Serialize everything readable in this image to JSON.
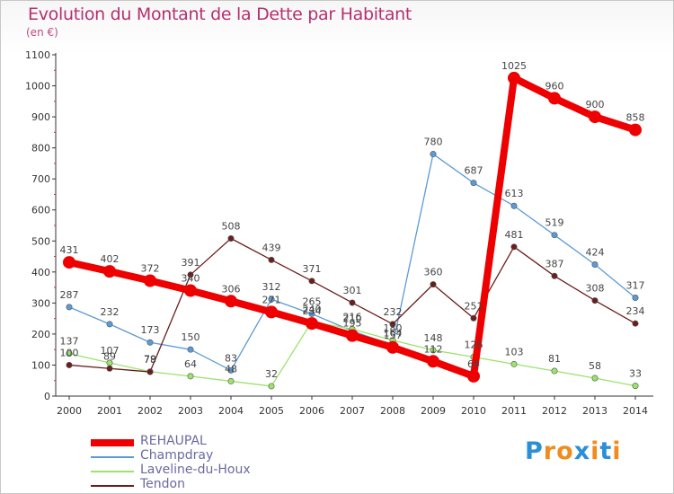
{
  "header": {
    "title": "Evolution du Montant de la Dette par Habitant",
    "unit": "(en €)"
  },
  "logo": {
    "text": "Proxiti",
    "letters": [
      "P",
      "r",
      "o",
      "x",
      "i",
      "t",
      "i"
    ],
    "colors": [
      "#2c8fd6",
      "#f08c1e",
      "#f08c1e",
      "#2c8fd6",
      "#f08c1e",
      "#2c8fd6",
      "#f08c1e"
    ]
  },
  "chart_data": {
    "type": "line",
    "title": "Evolution du Montant de la Dette par Habitant",
    "ylabel": "(en €)",
    "xlabel": "",
    "ylim": [
      0,
      1100
    ],
    "yticks": [
      0,
      100,
      200,
      300,
      400,
      500,
      600,
      700,
      800,
      900,
      1000,
      1100
    ],
    "x": [
      "2000",
      "2001",
      "2002",
      "2003",
      "2004",
      "2005",
      "2006",
      "2007",
      "2008",
      "2009",
      "2010",
      "2011",
      "2012",
      "2013",
      "2014"
    ],
    "grid": false,
    "legend": "bottom-left",
    "series": [
      {
        "name": "REHAUPAL",
        "color": "#ee0000",
        "width": 8,
        "marker": 7,
        "values": [
          431,
          402,
          372,
          340,
          306,
          271,
          234,
          195,
          157,
          112,
          64,
          1025,
          960,
          900,
          858
        ]
      },
      {
        "name": "Champdray",
        "color": "#5b9bd5",
        "width": 1.3,
        "marker": 3.2,
        "values": [
          287,
          232,
          173,
          150,
          83,
          312,
          265,
          210,
          164,
          780,
          687,
          613,
          519,
          424,
          317
        ]
      },
      {
        "name": "Laveline-du-Houx",
        "color": "#9be36b",
        "width": 1.3,
        "marker": 3.2,
        "values": [
          137,
          107,
          79,
          64,
          48,
          32,
          240,
          216,
          180,
          148,
          126,
          103,
          81,
          58,
          33
        ]
      },
      {
        "name": "Tendon",
        "color": "#6a1e1e",
        "width": 1.3,
        "marker": 3.2,
        "values": [
          100,
          89,
          78,
          391,
          508,
          439,
          371,
          301,
          232,
          360,
          251,
          481,
          387,
          308,
          234
        ]
      }
    ],
    "point_labels": [
      {
        "x": "2000",
        "text": "431"
      },
      {
        "x": "2001",
        "text": "402"
      },
      {
        "x": "2002",
        "text": "372"
      },
      {
        "x": "2003",
        "text": "340"
      },
      {
        "x": "2004",
        "text": "306"
      },
      {
        "x": "2005",
        "text": "271"
      },
      {
        "x": "2006",
        "text": "234"
      },
      {
        "x": "2007",
        "text": "195"
      },
      {
        "x": "2008",
        "text": "157"
      },
      {
        "x": "2009",
        "text": "112"
      },
      {
        "x": "2010",
        "text": "64"
      },
      {
        "x": "2011",
        "text": "1025"
      },
      {
        "x": "2012",
        "text": "960"
      },
      {
        "x": "2013",
        "text": "900"
      },
      {
        "x": "2014",
        "text": "858"
      },
      {
        "x": "2000",
        "text": "287"
      },
      {
        "x": "2001",
        "text": "232"
      },
      {
        "x": "2002",
        "text": "173"
      },
      {
        "x": "2003",
        "text": "150"
      },
      {
        "x": "2004",
        "text": "83"
      },
      {
        "x": "2005",
        "text": "312"
      },
      {
        "x": "2006",
        "text": "265"
      },
      {
        "x": "2007",
        "text": "210"
      },
      {
        "x": "2008",
        "text": "164"
      },
      {
        "x": "2009",
        "text": "780"
      },
      {
        "x": "2010",
        "text": "687"
      },
      {
        "x": "2011",
        "text": "613"
      },
      {
        "x": "2012",
        "text": "519"
      },
      {
        "x": "2013",
        "text": "424"
      },
      {
        "x": "2014",
        "text": "317"
      },
      {
        "x": "2000",
        "text": "137"
      },
      {
        "x": "2001",
        "text": "107"
      },
      {
        "x": "2002",
        "text": "79"
      },
      {
        "x": "2003",
        "text": "64"
      },
      {
        "x": "2004",
        "text": "48"
      },
      {
        "x": "2005",
        "text": "32"
      },
      {
        "x": "2006",
        "text": "240"
      },
      {
        "x": "2007",
        "text": "216"
      },
      {
        "x": "2008",
        "text": "180"
      },
      {
        "x": "2009",
        "text": "148"
      },
      {
        "x": "2010",
        "text": "126"
      },
      {
        "x": "2011",
        "text": "103"
      },
      {
        "x": "2012",
        "text": "81"
      },
      {
        "x": "2013",
        "text": "58"
      },
      {
        "x": "2014",
        "text": "33"
      },
      {
        "x": "2000",
        "text": "100"
      },
      {
        "x": "2001",
        "text": "89"
      },
      {
        "x": "2002",
        "text": "78"
      },
      {
        "x": "2003",
        "text": "391"
      },
      {
        "x": "2004",
        "text": "508"
      },
      {
        "x": "2005",
        "text": "439"
      },
      {
        "x": "2006",
        "text": "371"
      },
      {
        "x": "2007",
        "text": "301"
      },
      {
        "x": "2008",
        "text": "232"
      },
      {
        "x": "2009",
        "text": "360"
      },
      {
        "x": "2010",
        "text": "251"
      },
      {
        "x": "2011",
        "text": "481"
      },
      {
        "x": "2012",
        "text": "387"
      },
      {
        "x": "2013",
        "text": "308"
      },
      {
        "x": "2014",
        "text": "234"
      }
    ]
  }
}
